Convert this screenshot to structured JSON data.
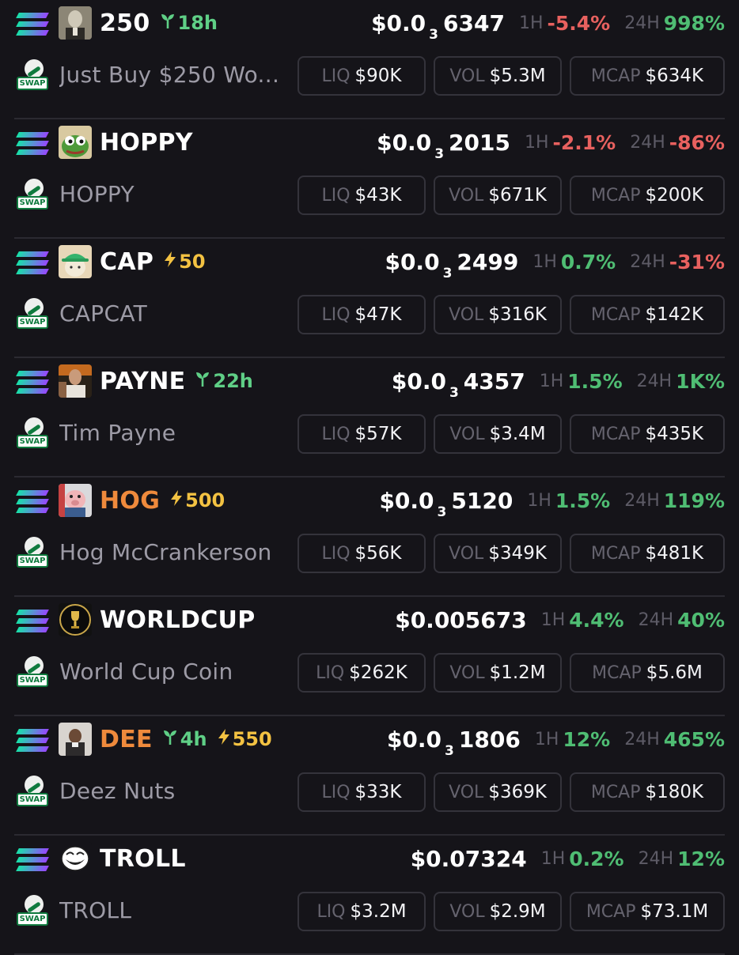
{
  "colors": {
    "background": "#151419",
    "positive": "#4fbd73",
    "negative": "#e8615f",
    "age_green": "#5fcf86",
    "boost_yellow": "#f3c242",
    "orange_ticker": "#ef8a3c",
    "solana_gradient": [
      "#17e3a8",
      "#5aa7e3",
      "#9945ff"
    ]
  },
  "labels": {
    "h1": "1H",
    "h24": "24H",
    "liq": "LIQ",
    "vol": "VOL",
    "mcap": "MCAP",
    "swap": "SWAP"
  },
  "tokens": [
    {
      "ticker": "250",
      "ticker_color": "white",
      "age": "18h",
      "boost": "",
      "avatar_icon": "trump-portrait-icon",
      "price_prefix": "$0.0",
      "price_sub": "3",
      "price_rest": "6347",
      "h1": "-5.4%",
      "h1_dir": "neg",
      "h24": "998%",
      "h24_dir": "pos",
      "name": "Just Buy $250 Wo...",
      "liq": "$90K",
      "vol": "$5.3M",
      "mcap": "$634K"
    },
    {
      "ticker": "HOPPY",
      "ticker_color": "white",
      "age": "",
      "boost": "",
      "avatar_icon": "pepe-frog-icon",
      "price_prefix": "$0.0",
      "price_sub": "3",
      "price_rest": "2015",
      "h1": "-2.1%",
      "h1_dir": "neg",
      "h24": "-86%",
      "h24_dir": "neg",
      "name": "HOPPY",
      "liq": "$43K",
      "vol": "$671K",
      "mcap": "$200K"
    },
    {
      "ticker": "CAP",
      "ticker_color": "white",
      "age": "",
      "boost": "50",
      "avatar_icon": "cat-in-cap-icon",
      "price_prefix": "$0.0",
      "price_sub": "3",
      "price_rest": "2499",
      "h1": "0.7%",
      "h1_dir": "pos",
      "h24": "-31%",
      "h24_dir": "neg",
      "name": "CAPCAT",
      "liq": "$47K",
      "vol": "$316K",
      "mcap": "$142K"
    },
    {
      "ticker": "PAYNE",
      "ticker_color": "white",
      "age": "22h",
      "boost": "",
      "avatar_icon": "athlete-portrait-icon",
      "price_prefix": "$0.0",
      "price_sub": "3",
      "price_rest": "4357",
      "h1": "1.5%",
      "h1_dir": "pos",
      "h24": "1K%",
      "h24_dir": "pos",
      "name": "Tim Payne",
      "liq": "$57K",
      "vol": "$3.4M",
      "mcap": "$435K"
    },
    {
      "ticker": "HOG",
      "ticker_color": "orange",
      "age": "",
      "boost": "500",
      "avatar_icon": "hog-cartoon-icon",
      "price_prefix": "$0.0",
      "price_sub": "3",
      "price_rest": "5120",
      "h1": "1.5%",
      "h1_dir": "pos",
      "h24": "119%",
      "h24_dir": "pos",
      "name": "Hog McCrankerson",
      "liq": "$56K",
      "vol": "$349K",
      "mcap": "$481K"
    },
    {
      "ticker": "WORLDCUP",
      "ticker_color": "white",
      "age": "",
      "boost": "",
      "avatar_icon": "world-cup-trophy-icon",
      "price_prefix": "$0.005673",
      "price_sub": "",
      "price_rest": "",
      "h1": "4.4%",
      "h1_dir": "pos",
      "h24": "40%",
      "h24_dir": "pos",
      "name": "World Cup Coin",
      "liq": "$262K",
      "vol": "$1.2M",
      "mcap": "$5.6M"
    },
    {
      "ticker": "DEE",
      "ticker_color": "orange",
      "age": "4h",
      "boost": "550",
      "avatar_icon": "person-portrait-icon",
      "price_prefix": "$0.0",
      "price_sub": "3",
      "price_rest": "1806",
      "h1": "12%",
      "h1_dir": "pos",
      "h24": "465%",
      "h24_dir": "pos",
      "name": "Deez Nuts",
      "liq": "$33K",
      "vol": "$369K",
      "mcap": "$180K"
    },
    {
      "ticker": "TROLL",
      "ticker_color": "white",
      "age": "",
      "boost": "",
      "avatar_icon": "troll-face-icon",
      "price_prefix": "$0.07324",
      "price_sub": "",
      "price_rest": "",
      "h1": "0.2%",
      "h1_dir": "pos",
      "h24": "12%",
      "h24_dir": "pos",
      "name": "TROLL",
      "liq": "$3.2M",
      "vol": "$2.9M",
      "mcap": "$73.1M"
    }
  ]
}
